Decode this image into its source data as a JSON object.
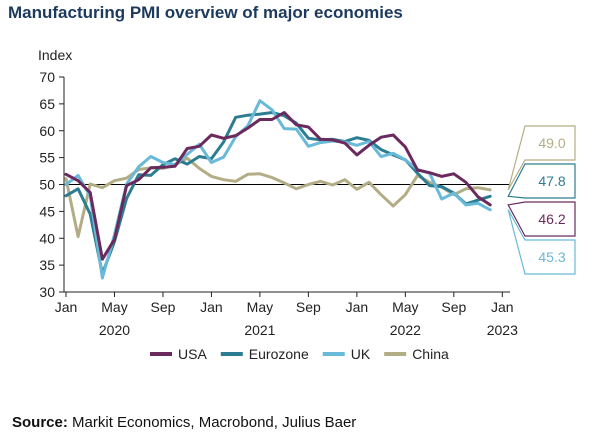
{
  "chart_data": {
    "type": "line",
    "title": "Manufacturing PMI overview of major economies",
    "ylabel": "Index",
    "ylim": [
      30,
      70
    ],
    "yticks": [
      30,
      35,
      40,
      45,
      50,
      55,
      60,
      65,
      70
    ],
    "reference_line": 50,
    "x_start": "2020-01",
    "x_end": "2023-01",
    "xticks": [
      {
        "month": "2020-01",
        "label": "Jan"
      },
      {
        "month": "2020-05",
        "label": "May"
      },
      {
        "month": "2020-09",
        "label": "Sep"
      },
      {
        "month": "2021-01",
        "label": "Jan"
      },
      {
        "month": "2021-05",
        "label": "May"
      },
      {
        "month": "2021-09",
        "label": "Sep"
      },
      {
        "month": "2022-01",
        "label": "Jan"
      },
      {
        "month": "2022-05",
        "label": "May"
      },
      {
        "month": "2022-09",
        "label": "Sep"
      },
      {
        "month": "2023-01",
        "label": "Jan"
      }
    ],
    "year_labels": [
      {
        "month": "2020-05",
        "label": "2020"
      },
      {
        "month": "2021-05",
        "label": "2021"
      },
      {
        "month": "2022-05",
        "label": "2022"
      },
      {
        "month": "2023-01",
        "label": "2023"
      }
    ],
    "months": [
      "2020-01",
      "2020-02",
      "2020-03",
      "2020-04",
      "2020-05",
      "2020-06",
      "2020-07",
      "2020-08",
      "2020-09",
      "2020-10",
      "2020-11",
      "2020-12",
      "2021-01",
      "2021-02",
      "2021-03",
      "2021-04",
      "2021-05",
      "2021-06",
      "2021-07",
      "2021-08",
      "2021-09",
      "2021-10",
      "2021-11",
      "2021-12",
      "2022-01",
      "2022-02",
      "2022-03",
      "2022-04",
      "2022-05",
      "2022-06",
      "2022-07",
      "2022-08",
      "2022-09",
      "2022-10",
      "2022-11",
      "2022-12"
    ],
    "series": [
      {
        "name": "China",
        "color": "#b3ad86",
        "callout": "49.0",
        "values": [
          51.1,
          40.3,
          50.1,
          49.4,
          50.7,
          51.2,
          52.8,
          53.1,
          53.0,
          53.6,
          54.9,
          53.0,
          51.5,
          50.9,
          50.6,
          51.9,
          52.0,
          51.3,
          50.3,
          49.2,
          50.0,
          50.6,
          49.9,
          50.9,
          49.1,
          50.4,
          48.1,
          46.0,
          48.1,
          51.7,
          50.4,
          49.5,
          48.1,
          49.2,
          49.4,
          49.0
        ]
      },
      {
        "name": "Eurozone",
        "color": "#2c7d92",
        "callout": "47.8",
        "values": [
          47.9,
          49.2,
          44.5,
          33.4,
          39.4,
          47.4,
          51.8,
          51.7,
          53.7,
          54.8,
          53.8,
          55.2,
          54.8,
          57.9,
          62.5,
          62.9,
          63.1,
          63.4,
          62.8,
          61.4,
          58.6,
          58.3,
          58.4,
          58.0,
          58.7,
          58.2,
          56.5,
          55.5,
          54.6,
          52.1,
          49.8,
          49.6,
          48.4,
          46.4,
          47.1,
          47.8
        ]
      },
      {
        "name": "UK",
        "color": "#69b9d8",
        "callout": "45.3",
        "values": [
          50.0,
          51.7,
          47.8,
          32.6,
          40.7,
          50.1,
          53.3,
          55.2,
          54.1,
          53.7,
          55.6,
          57.5,
          54.1,
          55.1,
          58.9,
          60.9,
          65.6,
          63.9,
          60.4,
          60.3,
          57.1,
          57.8,
          58.1,
          57.9,
          57.3,
          58.0,
          55.2,
          55.8,
          54.6,
          52.8,
          52.1,
          47.3,
          48.4,
          46.2,
          46.5,
          45.3
        ]
      },
      {
        "name": "USA",
        "color": "#6b2a5e",
        "callout": "46.2",
        "values": [
          51.9,
          50.7,
          48.5,
          36.1,
          39.8,
          49.8,
          50.9,
          53.1,
          53.2,
          53.4,
          56.7,
          57.1,
          59.2,
          58.6,
          59.1,
          60.5,
          62.1,
          62.1,
          63.4,
          61.1,
          60.7,
          58.4,
          58.3,
          57.7,
          55.5,
          57.3,
          58.8,
          59.2,
          57.0,
          52.7,
          52.2,
          51.5,
          52.0,
          50.4,
          47.7,
          46.2
        ]
      }
    ],
    "legend": {
      "placement": "bottom",
      "order": [
        "USA",
        "Eurozone",
        "UK",
        "China"
      ]
    }
  },
  "source": {
    "label": "Source:",
    "text": " Markit Economics, Macrobond, Julius Baer"
  },
  "colors": {
    "title": "#1c3a5e",
    "axis": "#222222",
    "reference": "#000000"
  }
}
